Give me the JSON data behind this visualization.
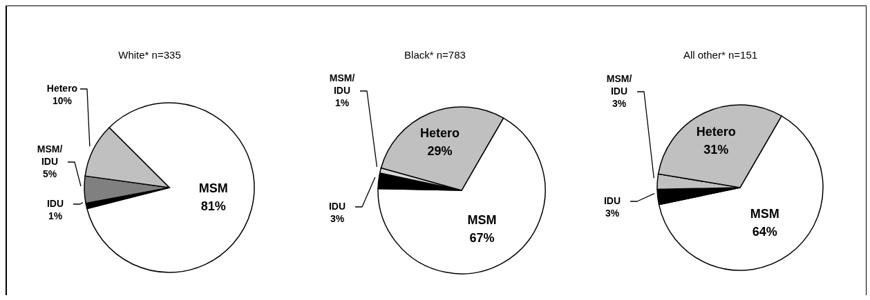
{
  "chart_data": [
    {
      "type": "pie",
      "title": "White* n=335",
      "categories": [
        "MSM",
        "IDU",
        "MSM/IDU",
        "Hetero"
      ],
      "values": [
        81,
        1,
        5,
        10
      ],
      "value_labels": [
        "81%",
        "1%",
        "5%",
        "10%"
      ],
      "colors": [
        "#ffffff",
        "#000000",
        "#808080",
        "#c0c0c0"
      ]
    },
    {
      "type": "pie",
      "title": "Black* n=783",
      "categories": [
        "MSM",
        "IDU",
        "MSM/IDU",
        "Hetero"
      ],
      "values": [
        67,
        3,
        1,
        29
      ],
      "value_labels": [
        "67%",
        "3%",
        "1%",
        "29%"
      ],
      "colors": [
        "#ffffff",
        "#000000",
        "#d9d9d9",
        "#c0c0c0"
      ]
    },
    {
      "type": "pie",
      "title": "All other* n=151",
      "categories": [
        "MSM",
        "IDU",
        "MSM/IDU",
        "Hetero"
      ],
      "values": [
        64,
        3,
        3,
        31
      ],
      "value_labels": [
        "64%",
        "3%",
        "3%",
        "31%"
      ],
      "colors": [
        "#ffffff",
        "#000000",
        "#c0c0c0",
        "#c0c0c0"
      ]
    }
  ]
}
